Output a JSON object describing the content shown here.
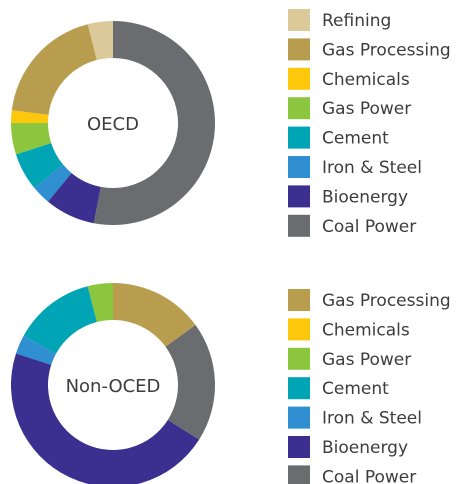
{
  "chart_data": [
    {
      "type": "pie",
      "donut": true,
      "title": "OECD",
      "categories": [
        "Refining",
        "Gas Processing",
        "Chemicals",
        "Gas Power",
        "Cement",
        "Iron & Steel",
        "Bioenergy",
        "Coal Power"
      ],
      "values": [
        4,
        19,
        2,
        5,
        6,
        3,
        8,
        53
      ],
      "colors": [
        "#dcc99a",
        "#b99d4f",
        "#fdc80b",
        "#8cc63e",
        "#00a5b5",
        "#2f8fd1",
        "#3b2f8f",
        "#6b6c6f"
      ]
    },
    {
      "type": "pie",
      "donut": true,
      "title": "Non-OCED",
      "categories": [
        "Gas Processing",
        "Chemicals",
        "Gas Power",
        "Cement",
        "Iron & Steel",
        "Bioenergy",
        "Coal Power"
      ],
      "values": [
        15,
        0,
        4,
        13,
        3,
        46,
        19
      ],
      "colors": [
        "#b99d4f",
        "#fdc80b",
        "#8cc63e",
        "#00a5b5",
        "#2f8fd1",
        "#3b2f8f",
        "#6b6c6f"
      ]
    }
  ]
}
